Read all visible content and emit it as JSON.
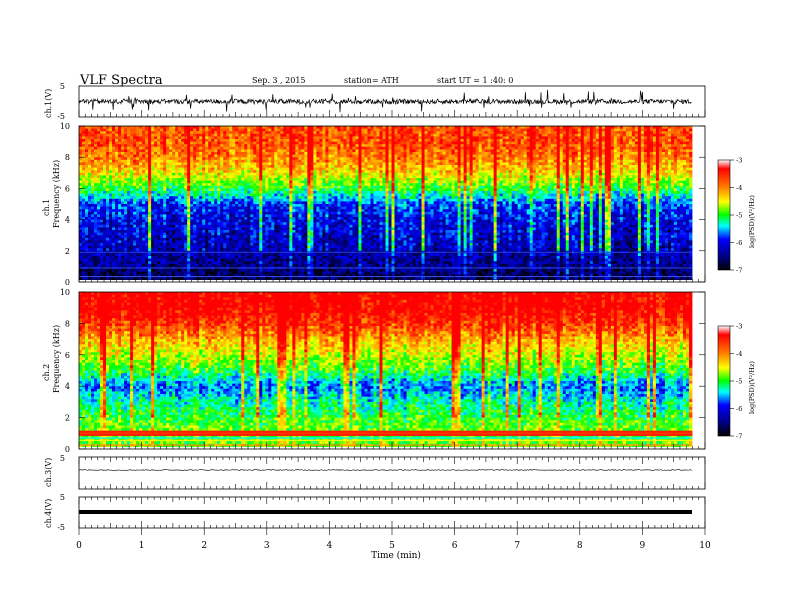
{
  "header": {
    "title": "VLF Spectra",
    "date": "Sep. 3 , 2015",
    "station": "station= ATH",
    "start": "start UT = 1 :40: 0"
  },
  "colorbar": {
    "label": "log(PSD)(V²/Hz)",
    "ticks": [
      "-3",
      "-4",
      "-5",
      "-6",
      "-7"
    ],
    "colors": [
      "#ff0000",
      "#ff8000",
      "#ffff00",
      "#00ff00",
      "#00ffff",
      "#0000ff",
      "#000080",
      "#000000"
    ]
  },
  "chart_data": [
    {
      "type": "line",
      "panel": "ch1-waveform",
      "ylabel": "ch.1(V)",
      "ylim": [
        -5,
        5
      ],
      "yticks": [
        "5",
        "-5"
      ],
      "description_series": "noisy waveform centred near 0 V with spikes to about ±4 V"
    },
    {
      "type": "heatmap",
      "panel": "ch1-spectrogram",
      "ylabel": "ch.1 Frequency (kHz)",
      "ylim": [
        0,
        10
      ],
      "yticks": [
        "0",
        "2",
        "4",
        "6",
        "8",
        "10"
      ],
      "xlim": [
        0,
        9.8
      ],
      "clim": [
        -7,
        -3
      ],
      "freq_profile_khz": [
        0,
        1,
        2,
        3,
        4,
        5,
        6,
        7,
        8,
        9,
        10
      ],
      "logpsd_profile": [
        -6.8,
        -6.6,
        -6.4,
        -6.3,
        -6.2,
        -6.0,
        -5.2,
        -4.6,
        -4.2,
        -4.0,
        -4.0
      ]
    },
    {
      "type": "heatmap",
      "panel": "ch2-spectrogram",
      "ylabel": "ch.2 Frequency (kHz)",
      "ylim": [
        0,
        10
      ],
      "yticks": [
        "0",
        "2",
        "4",
        "6",
        "8",
        "10"
      ],
      "xlim": [
        0,
        9.8
      ],
      "clim": [
        -7,
        -3
      ],
      "freq_profile_khz": [
        0,
        1,
        2,
        3,
        4,
        5,
        6,
        7,
        8,
        9,
        10
      ],
      "logpsd_profile": [
        -4.8,
        -5.0,
        -5.2,
        -5.5,
        -5.9,
        -5.2,
        -4.8,
        -4.4,
        -3.9,
        -3.6,
        -3.6
      ]
    },
    {
      "type": "line",
      "panel": "ch3-waveform",
      "ylabel": "ch.3(V)",
      "ylim": [
        -5,
        5
      ],
      "yticks": [
        "5"
      ],
      "description_series": "nearly flat signal near 0 V"
    },
    {
      "type": "line",
      "panel": "ch4-waveform",
      "ylabel": "ch.4(V)",
      "ylim": [
        -5,
        5
      ],
      "yticks": [
        "5",
        "-5"
      ],
      "description_series": "thick flat line near 0 V"
    }
  ],
  "xaxis": {
    "label": "Time (min)",
    "ticks": [
      "0",
      "1",
      "2",
      "3",
      "4",
      "5",
      "6",
      "7",
      "8",
      "9",
      "10"
    ],
    "xlim": [
      0,
      10
    ]
  }
}
